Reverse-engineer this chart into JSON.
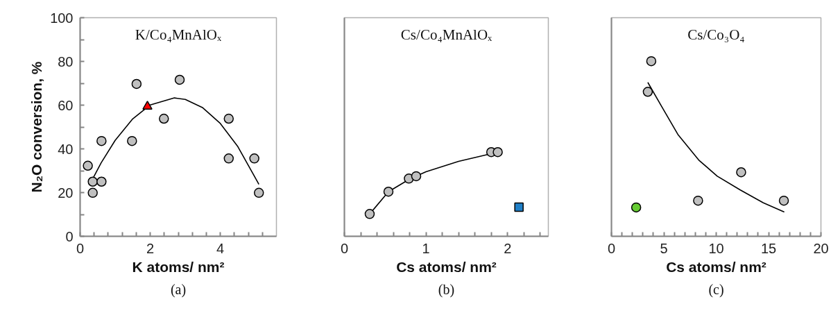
{
  "chart_data": [
    {
      "type": "scatter",
      "title": "K/Co₄MnAlOₓ",
      "xlabel": "K atoms/ nm²",
      "ylabel": "N₂O conversion, %",
      "annotations": [
        "(a)"
      ],
      "xlim": [
        0,
        5.6
      ],
      "xticks": [
        0,
        {
          "value": 0.4,
          "label": null
        },
        {
          "value": 0.8,
          "label": null
        },
        {
          "value": 1.2,
          "label": null
        },
        {
          "value": 1.6,
          "label": null
        },
        2,
        {
          "value": 2.4,
          "label": null
        },
        {
          "value": 2.8,
          "label": null
        },
        {
          "value": 3.2,
          "label": null
        },
        {
          "value": 3.6,
          "label": null
        },
        4,
        {
          "value": 4.4,
          "label": null
        },
        {
          "value": 4.8,
          "label": null
        },
        {
          "value": 5.2,
          "label": null
        }
      ],
      "ylim": [
        0,
        100
      ],
      "yticks": [
        0,
        {
          "value": 10,
          "label": null
        },
        20,
        {
          "value": 30,
          "label": null
        },
        40,
        {
          "value": 50,
          "label": null
        },
        60,
        {
          "value": 70,
          "label": null
        },
        80,
        {
          "value": 90,
          "label": null
        },
        100
      ],
      "grid": false,
      "series": [
        {
          "type": "line",
          "color": "#000000",
          "line_style": "solid",
          "marker": "none",
          "x": [
            0.3,
            0.6,
            1.0,
            1.5,
            2.0,
            2.69,
            3.0,
            3.5,
            4.0,
            4.5,
            5.1
          ],
          "values": [
            24.5,
            33.6,
            43.9,
            53.7,
            60.1,
            63.3,
            62.6,
            58.8,
            51.6,
            41.0,
            23.8
          ]
        },
        {
          "color": "#c0c0c0",
          "marker": "circle",
          "x": [
            0.22,
            0.36,
            0.36,
            0.61,
            0.61,
            1.48,
            1.61,
            2.39,
            2.84,
            4.24,
            4.24,
            4.97,
            5.1
          ],
          "values": [
            32.3,
            25,
            19.9,
            25,
            43.6,
            43.6,
            69.7,
            53.8,
            71.6,
            53.8,
            35.6,
            35.6,
            19.9
          ]
        },
        {
          "color": "#ff0000",
          "marker": "triangle",
          "x": [
            1.92
          ],
          "values": [
            59.4
          ]
        }
      ]
    },
    {
      "type": "scatter",
      "title": "Cs/Co₄MnAlOₓ",
      "xlabel": "Cs atoms/ nm²",
      "annotations": [
        "(b)"
      ],
      "tick_labels": "x",
      "xlim": [
        0,
        2.5
      ],
      "xticks": [
        0,
        {
          "value": 0.2,
          "label": null
        },
        {
          "value": 0.4,
          "label": null
        },
        {
          "value": 0.6,
          "label": null
        },
        {
          "value": 0.8,
          "label": null
        },
        1,
        {
          "value": 1.2,
          "label": null
        },
        {
          "value": 1.4,
          "label": null
        },
        {
          "value": 1.6,
          "label": null
        },
        {
          "value": 1.8,
          "label": null
        },
        2,
        {
          "value": 2.2,
          "label": null
        },
        {
          "value": 2.4,
          "label": null
        }
      ],
      "ylim": [
        0,
        100
      ],
      "grid": false,
      "series": [
        {
          "type": "line",
          "color": "#000000",
          "line_style": "solid",
          "marker": "none",
          "x": [
            0.31,
            0.54,
            0.8,
            1.0,
            1.4,
            1.88
          ],
          "values": [
            10.2,
            20.4,
            26.2,
            29.5,
            34.3,
            38.5
          ]
        },
        {
          "color": "#c0c0c0",
          "marker": "circle",
          "x": [
            0.31,
            0.54,
            0.79,
            0.88,
            1.8,
            1.88
          ],
          "values": [
            10.2,
            20.4,
            26.4,
            27.5,
            38.5,
            38.5
          ]
        },
        {
          "color": "#2080c8",
          "marker": "square",
          "x": [
            2.14
          ],
          "values": [
            13.3
          ]
        }
      ]
    },
    {
      "type": "scatter",
      "title": "Cs/Co₃O₄",
      "xlabel": "Cs atoms/ nm²",
      "annotations": [
        "(c)"
      ],
      "tick_labels": "x",
      "xlim": [
        0,
        20
      ],
      "xticks": [
        0,
        {
          "value": 1,
          "label": null
        },
        {
          "value": 2,
          "label": null
        },
        {
          "value": 3,
          "label": null
        },
        {
          "value": 4,
          "label": null
        },
        5,
        {
          "value": 6,
          "label": null
        },
        {
          "value": 7,
          "label": null
        },
        {
          "value": 8,
          "label": null
        },
        {
          "value": 9,
          "label": null
        },
        10,
        {
          "value": 11,
          "label": null
        },
        {
          "value": 12,
          "label": null
        },
        {
          "value": 13,
          "label": null
        },
        {
          "value": 14,
          "label": null
        },
        15,
        {
          "value": 16,
          "label": null
        },
        {
          "value": 17,
          "label": null
        },
        {
          "value": 18,
          "label": null
        },
        {
          "value": 19,
          "label": null
        },
        20
      ],
      "ylim": [
        0,
        100
      ],
      "grid": false,
      "series": [
        {
          "type": "line",
          "color": "#000000",
          "line_style": "solid",
          "marker": "none",
          "x": [
            3.47,
            4.8,
            6.34,
            8.33,
            10.1,
            12.3,
            14.5,
            16.5
          ],
          "values": [
            70.4,
            59.3,
            46.6,
            34.9,
            27.5,
            21.2,
            15.3,
            11.1
          ]
        },
        {
          "color": "#c0c0c0",
          "marker": "circle",
          "x": [
            3.8,
            3.47,
            12.38,
            8.27,
            16.46
          ],
          "values": [
            80.1,
            66.1,
            29.3,
            16.3,
            16.3
          ]
        },
        {
          "color": "#66cc33",
          "marker": "circle",
          "x": [
            2.36
          ],
          "values": [
            13.2
          ]
        }
      ]
    }
  ]
}
